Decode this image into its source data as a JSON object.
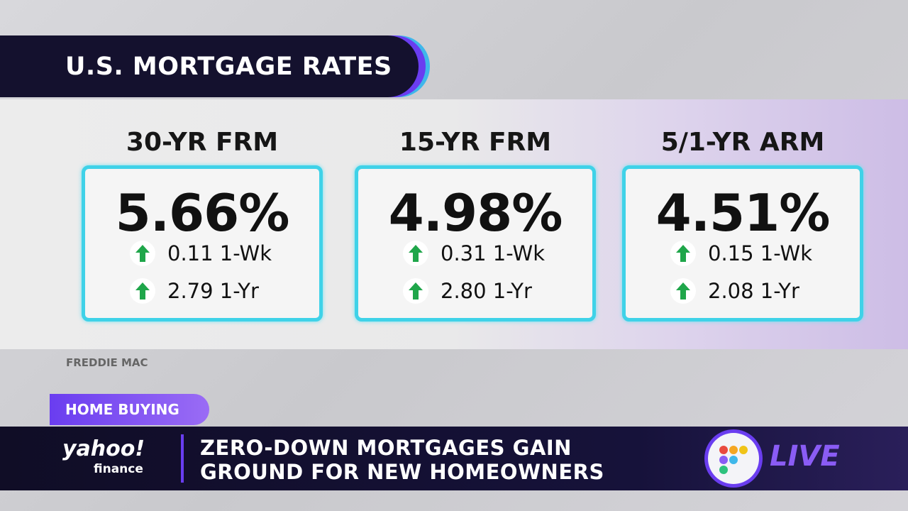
{
  "header": {
    "title": "U.S. MORTGAGE RATES"
  },
  "cards": [
    {
      "title": "30-YR FRM",
      "rate": "5.66%",
      "changes": [
        {
          "value": "0.11",
          "label": "1-Wk"
        },
        {
          "value": "2.79",
          "label": "1-Yr"
        }
      ]
    },
    {
      "title": "15-YR FRM",
      "rate": "4.98%",
      "changes": [
        {
          "value": "0.31",
          "label": "1-Wk"
        },
        {
          "value": "2.80",
          "label": "1-Yr"
        }
      ]
    },
    {
      "title": "5/1-YR ARM",
      "rate": "4.51%",
      "changes": [
        {
          "value": "0.15",
          "label": "1-Wk"
        },
        {
          "value": "2.08",
          "label": "1-Yr"
        }
      ]
    }
  ],
  "source": "FREDDIE MAC",
  "ticker": {
    "tag": "HOME BUYING",
    "logo": "yahoo!",
    "logo_sub": "finance",
    "headline": [
      "ZERO-DOWN MORTGAGES GAIN",
      "GROUND FOR NEW HOMEOWNERS"
    ],
    "live": "LIVE"
  }
}
